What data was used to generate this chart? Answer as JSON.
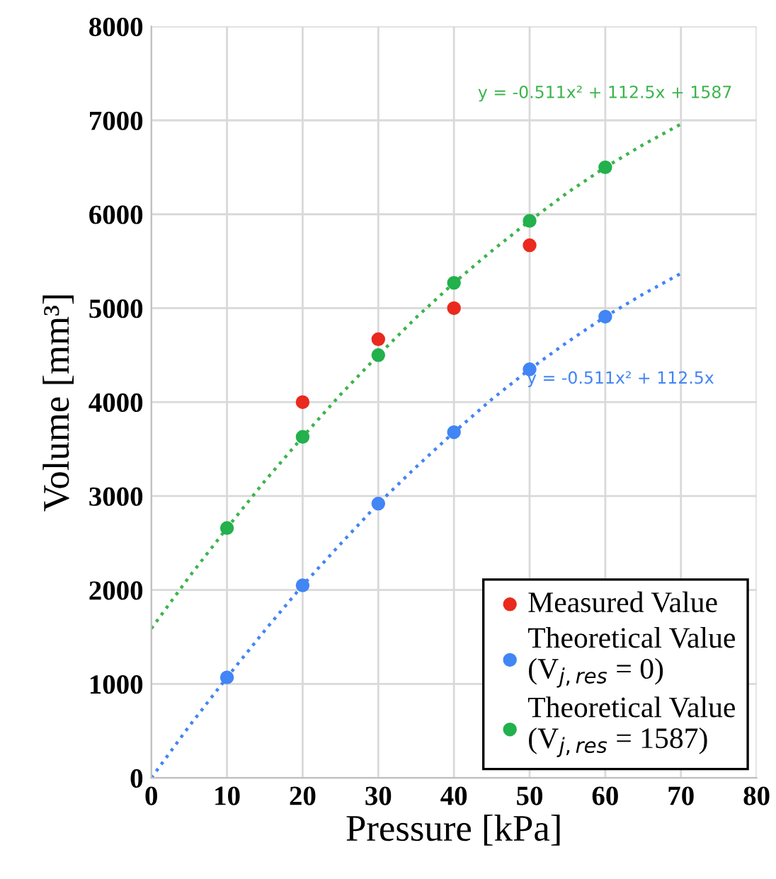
{
  "chart_data": {
    "type": "scatter",
    "xlabel": "Pressure [kPa]",
    "ylabel": "Volume [mm³]",
    "xlim": [
      0,
      80
    ],
    "xticks": [
      0,
      10,
      20,
      30,
      40,
      50,
      60,
      70,
      80
    ],
    "ylim": [
      0,
      8000
    ],
    "yticks": [
      0,
      1000,
      2000,
      3000,
      4000,
      5000,
      6000,
      7000,
      8000
    ],
    "grid": true,
    "legend": "bottom right",
    "annotations": [
      "y = -0.511x² + 112.5x + 1587",
      "y = -0.511x² + 112.5x"
    ],
    "series": [
      {
        "type": "line",
        "color": "#3cb44b",
        "line_style": "dotted",
        "marker": "none",
        "x": [
          0,
          5,
          10,
          15,
          20,
          25,
          30,
          35,
          40,
          45,
          50,
          55,
          60,
          65,
          70
        ],
        "values": [
          1590,
          2140,
          2660,
          3160,
          3630,
          4080,
          4500,
          4900,
          5270,
          5610,
          5930,
          6230,
          6500,
          6740,
          6960
        ]
      },
      {
        "type": "line",
        "color": "#4285f4",
        "line_style": "dotted",
        "marker": "none",
        "x": [
          0,
          5,
          10,
          15,
          20,
          25,
          30,
          35,
          40,
          45,
          50,
          55,
          60,
          65,
          70
        ],
        "values": [
          0,
          550,
          1070,
          1570,
          2050,
          2490,
          2920,
          3310,
          3680,
          4030,
          4350,
          4640,
          4910,
          5150,
          5370
        ]
      },
      {
        "name": "Measured Value",
        "color": "#ea2a1e",
        "marker": "circle",
        "x": [
          20,
          30,
          40,
          50
        ],
        "values": [
          4000,
          4670,
          5000,
          5670
        ]
      },
      {
        "name": "Theoretical Value\n(V$_{j,res}$ = 0)",
        "color": "#4285f4",
        "marker": "circle",
        "x": [
          10,
          20,
          30,
          40,
          50,
          60
        ],
        "values": [
          1070,
          2050,
          2920,
          3680,
          4350,
          4910
        ]
      },
      {
        "name": "Theoretical Value\n(V$_{j,res}$ = 1587)",
        "color": "#22b14c",
        "marker": "circle",
        "x": [
          10,
          20,
          30,
          40,
          50,
          60
        ],
        "values": [
          2660,
          3630,
          4500,
          5270,
          5930,
          6500
        ]
      }
    ]
  }
}
